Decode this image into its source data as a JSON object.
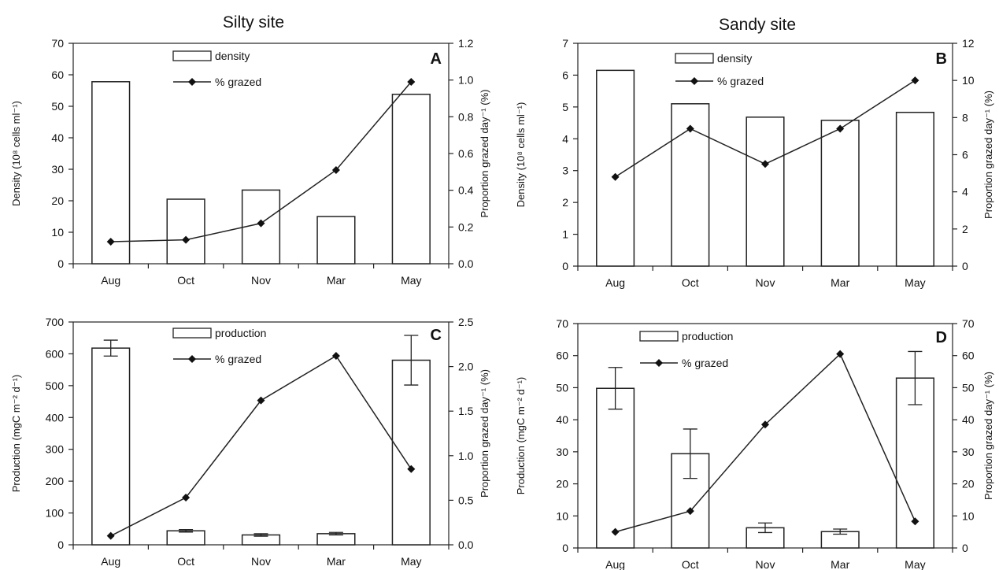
{
  "titles": {
    "left": "Silty site",
    "right": "Sandy site"
  },
  "chart_data": [
    {
      "panel": "A",
      "type": "bar",
      "categories": [
        "Aug",
        "Oct",
        "Nov",
        "Mar",
        "May"
      ],
      "bar_series": {
        "name": "density",
        "values": [
          57.8,
          20.5,
          23.4,
          15.0,
          53.8
        ]
      },
      "line_series": {
        "name": "% grazed",
        "values": [
          0.12,
          0.13,
          0.22,
          0.51,
          0.99
        ]
      },
      "ylabel": "Density (10⁸ cells ml⁻¹)",
      "y2label": "Proportion grazed day⁻¹ (%)",
      "ylim": [
        0,
        70
      ],
      "yticks": [
        0,
        10,
        20,
        30,
        40,
        50,
        60,
        70
      ],
      "y2lim": [
        0,
        1.2
      ],
      "y2ticks": [
        "0.0",
        "0.2",
        "0.4",
        "0.6",
        "0.8",
        "1.0",
        "1.2"
      ]
    },
    {
      "panel": "B",
      "type": "bar",
      "categories": [
        "Aug",
        "Oct",
        "Nov",
        "Mar",
        "May"
      ],
      "bar_series": {
        "name": "density",
        "values": [
          6.15,
          5.1,
          4.68,
          4.58,
          4.83
        ]
      },
      "line_series": {
        "name": "% grazed",
        "values": [
          4.8,
          7.4,
          5.5,
          7.4,
          10.0
        ]
      },
      "ylabel": "Density (10⁸ cells ml⁻¹)",
      "y2label": "Proportion grazed day⁻¹ (%)",
      "ylim": [
        0,
        7
      ],
      "yticks": [
        0,
        1,
        2,
        3,
        4,
        5,
        6,
        7
      ],
      "y2lim": [
        0,
        12
      ],
      "y2ticks": [
        "0",
        "2",
        "4",
        "6",
        "8",
        "10",
        "12"
      ]
    },
    {
      "panel": "C",
      "type": "bar",
      "categories": [
        "Aug",
        "Oct",
        "Nov",
        "Mar",
        "May"
      ],
      "bar_series": {
        "name": "production",
        "values": [
          618,
          44,
          31,
          35,
          580
        ],
        "errors": [
          25,
          4,
          4,
          4,
          78
        ]
      },
      "line_series": {
        "name": "% grazed",
        "values": [
          0.1,
          0.53,
          1.62,
          2.12,
          0.85
        ]
      },
      "ylabel": "Production (mgC m⁻² d⁻¹)",
      "y2label": "Proportion grazed day⁻¹ (%)",
      "ylim": [
        0,
        700
      ],
      "yticks": [
        0,
        100,
        200,
        300,
        400,
        500,
        600,
        700
      ],
      "y2lim": [
        0,
        2.5
      ],
      "y2ticks": [
        "0.0",
        "0.5",
        "1.0",
        "1.5",
        "2.0",
        "2.5"
      ]
    },
    {
      "panel": "D",
      "type": "bar",
      "categories": [
        "Aug",
        "Oct",
        "Nov",
        "Mar",
        "May"
      ],
      "bar_series": {
        "name": "production",
        "values": [
          49.8,
          29.4,
          6.3,
          5.1,
          53.0
        ],
        "errors": [
          6.5,
          7.7,
          1.5,
          0.8,
          8.3
        ]
      },
      "line_series": {
        "name": "% grazed",
        "values": [
          5.0,
          11.5,
          38.5,
          60.5,
          8.3
        ]
      },
      "ylabel": "Production (mgC m⁻² d⁻¹)",
      "y2label": "Proportion grazed day⁻¹ (%)",
      "ylim": [
        0,
        70
      ],
      "yticks": [
        0,
        10,
        20,
        30,
        40,
        50,
        60,
        70
      ],
      "y2lim": [
        0,
        70
      ],
      "y2ticks": [
        "0",
        "10",
        "20",
        "30",
        "40",
        "50",
        "60",
        "70"
      ]
    }
  ]
}
